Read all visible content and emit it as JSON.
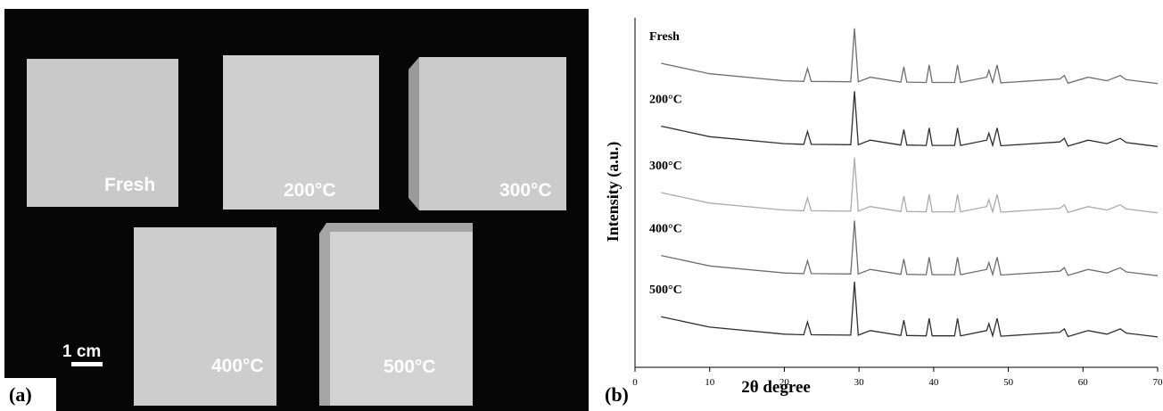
{
  "panel_a": {
    "label": "(a)",
    "scale_bar": "1 cm",
    "samples": [
      "Fresh",
      "200°C",
      "300°C",
      "400°C",
      "500°C"
    ]
  },
  "chart_data": {
    "type": "line",
    "panel_label": "(b)",
    "xlabel": "2θ degree",
    "ylabel": "Intensity (a.u.)",
    "xlim": [
      0,
      70
    ],
    "xticks": [
      0,
      10,
      20,
      30,
      40,
      50,
      60,
      70
    ],
    "ylim": [
      0,
      100
    ],
    "x": [
      3.5,
      10,
      20,
      22.6,
      23.1,
      23.6,
      28.9,
      29.4,
      29.9,
      31.5,
      35.6,
      36.0,
      36.4,
      39.0,
      39.4,
      39.8,
      42.8,
      43.2,
      43.6,
      47.1,
      47.4,
      47.9,
      48.5,
      49.0,
      56.9,
      57.5,
      58.0,
      60.7,
      63.2,
      65.0,
      65.8,
      70
    ],
    "series": [
      {
        "name": "Fresh",
        "color": "#6e6e6e",
        "values": [
          87,
          84,
          82,
          81.8,
          85.5,
          81.8,
          81.7,
          97,
          81.7,
          83,
          81.6,
          86,
          81.6,
          81.5,
          86.5,
          81.5,
          81.5,
          86.5,
          81.5,
          83,
          85,
          81.5,
          86.5,
          81.4,
          82.5,
          83.5,
          81.3,
          83,
          82,
          83.5,
          82.3,
          81.2
        ]
      },
      {
        "name": "200°C",
        "color": "#2e2e2e",
        "values": [
          69,
          66,
          64,
          63.8,
          67.5,
          63.8,
          63.7,
          79,
          63.7,
          65,
          63.6,
          68,
          63.6,
          63.5,
          68.5,
          63.5,
          63.5,
          68.5,
          63.5,
          65,
          67,
          63.5,
          68.5,
          63.4,
          64.5,
          65.5,
          63.3,
          65,
          64,
          65.5,
          64.3,
          63.2
        ]
      },
      {
        "name": "300°C",
        "color": "#ababab",
        "values": [
          50,
          47,
          45,
          44.8,
          48.5,
          44.8,
          44.7,
          60,
          44.7,
          46,
          44.6,
          49,
          44.6,
          44.5,
          49.5,
          44.5,
          44.5,
          49.5,
          44.5,
          46,
          48,
          44.5,
          49.5,
          44.4,
          45.5,
          46.5,
          44.3,
          46,
          45,
          46.5,
          45.3,
          44.2
        ]
      },
      {
        "name": "400°C",
        "color": "#6e6e6e",
        "values": [
          32,
          29,
          27,
          26.8,
          30.5,
          26.8,
          26.7,
          42,
          26.7,
          28,
          26.6,
          31,
          26.6,
          26.5,
          31.5,
          26.5,
          26.5,
          31.5,
          26.5,
          28,
          30,
          26.5,
          31.5,
          26.4,
          27.5,
          28.5,
          26.3,
          28,
          27,
          28.5,
          27.3,
          26.2
        ]
      },
      {
        "name": "500°C",
        "color": "#2e2e2e",
        "values": [
          14.5,
          11.5,
          9.5,
          9.3,
          13,
          9.3,
          9.2,
          24.5,
          9.2,
          10.5,
          9.1,
          13.5,
          9.1,
          9,
          14,
          9,
          9,
          14,
          9,
          10.5,
          12.5,
          9,
          14,
          8.9,
          10,
          11,
          8.8,
          10.5,
          9.5,
          11,
          9.8,
          8.7
        ]
      }
    ]
  }
}
